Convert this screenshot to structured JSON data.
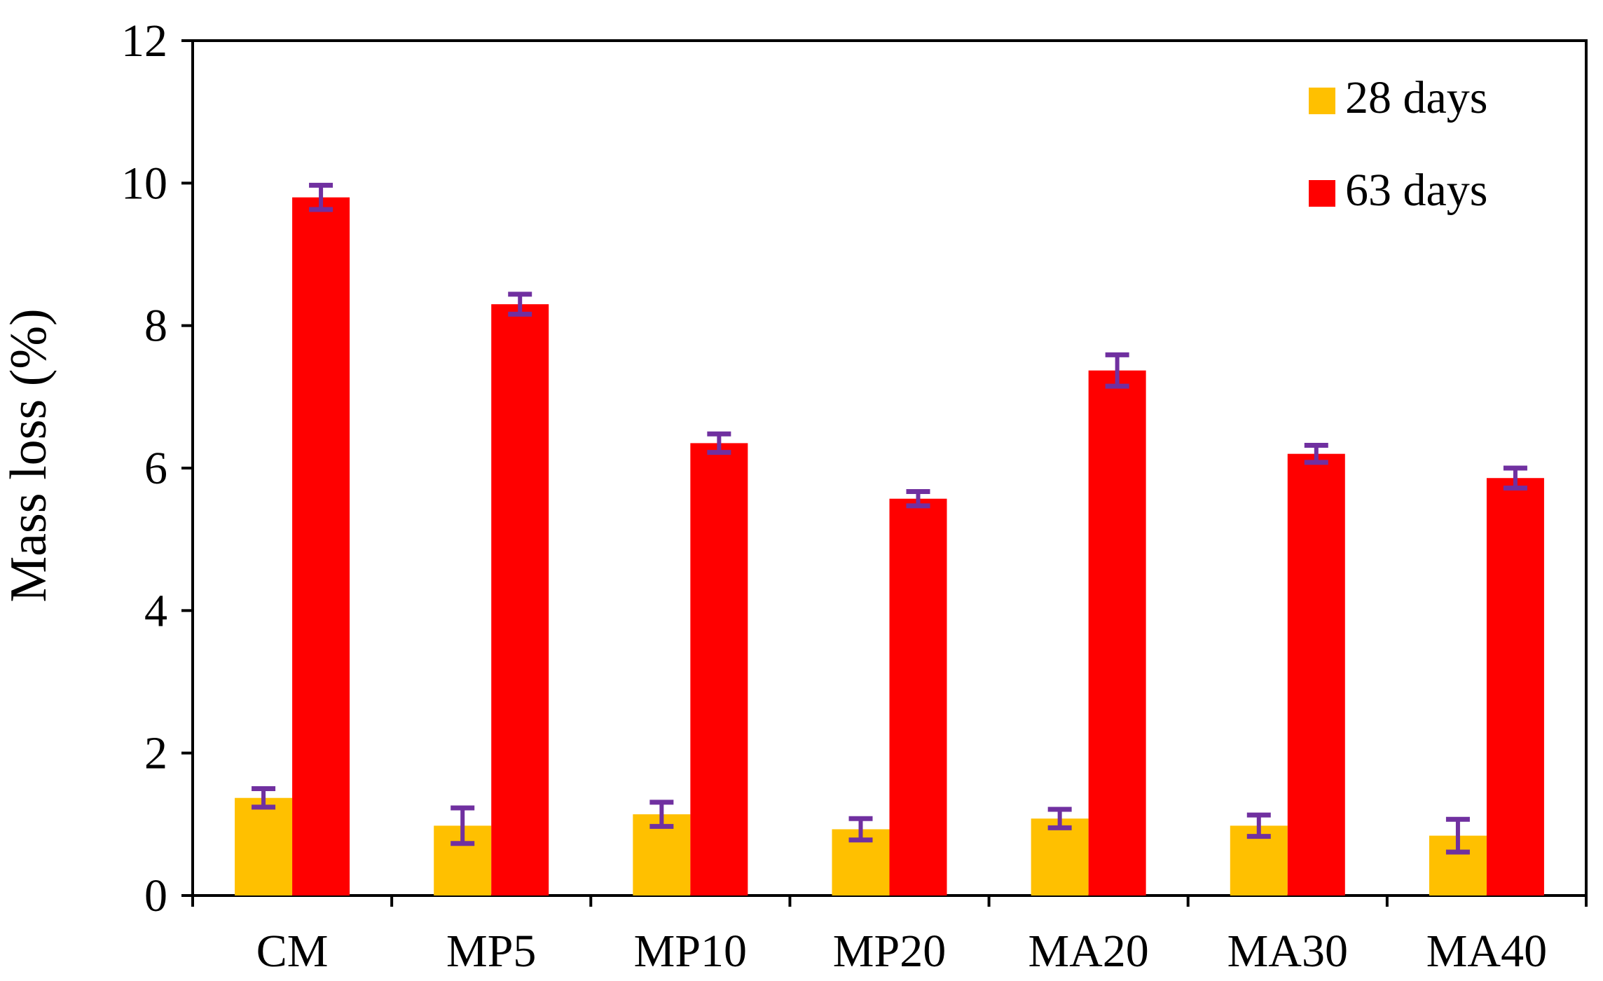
{
  "chart_data": {
    "type": "bar",
    "title": "",
    "xlabel": "",
    "ylabel": "Mass loss (%)",
    "ylim": [
      0,
      12
    ],
    "yticks": [
      "0",
      "2",
      "4",
      "6",
      "8",
      "10",
      "12"
    ],
    "grid": false,
    "legend_position": "top-right",
    "categories": [
      "CM",
      "MP5",
      "MP10",
      "MP20",
      "MA20",
      "MA30",
      "MA40"
    ],
    "series": [
      {
        "name": "28 days",
        "color": "#FFC000",
        "values": [
          1.37,
          0.98,
          1.14,
          0.93,
          1.08,
          0.98,
          0.84
        ],
        "errors": [
          0.13,
          0.25,
          0.17,
          0.15,
          0.13,
          0.15,
          0.23
        ]
      },
      {
        "name": "63 days",
        "color": "#FF0000",
        "values": [
          9.8,
          8.3,
          6.35,
          5.57,
          7.37,
          6.2,
          5.86
        ],
        "errors": [
          0.17,
          0.14,
          0.13,
          0.1,
          0.22,
          0.12,
          0.14
        ]
      }
    ],
    "error_bar_color": "#7030A0",
    "axis_color": "#000000"
  }
}
